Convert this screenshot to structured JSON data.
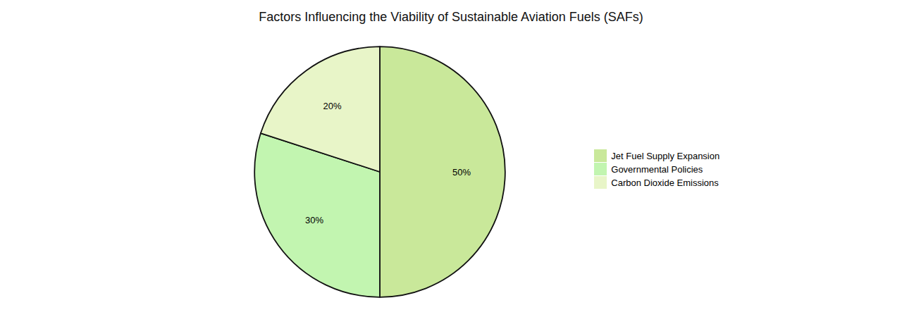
{
  "chart_data": {
    "type": "pie",
    "title": "Factors Influencing the Viability of Sustainable Aviation Fuels (SAFs)",
    "categories": [
      "Jet Fuel Supply Expansion",
      "Governmental Policies",
      "Carbon Dioxide Emissions"
    ],
    "values": [
      50,
      30,
      20
    ],
    "value_labels": [
      "50%",
      "30%",
      "20%"
    ],
    "colors": [
      "#c9e89a",
      "#c2f5b0",
      "#e8f5c8"
    ],
    "data_labels": true,
    "legend": "right"
  }
}
